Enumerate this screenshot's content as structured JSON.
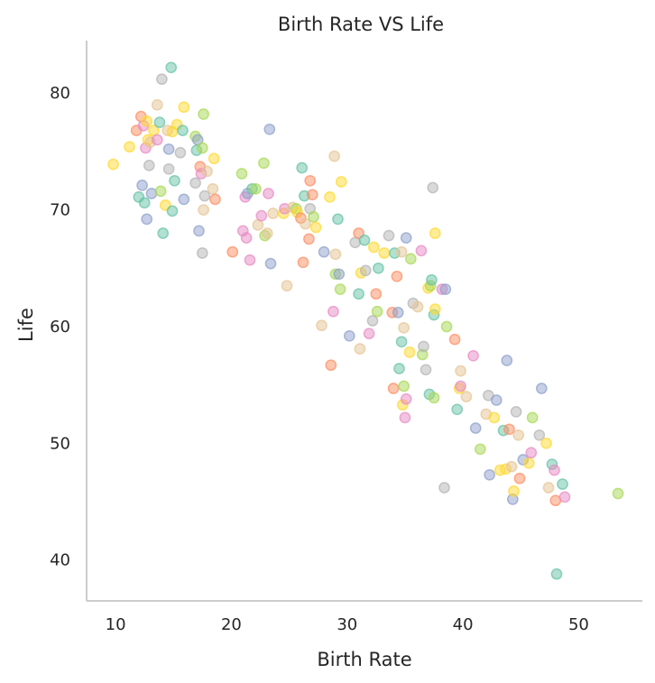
{
  "chart_data": {
    "type": "scatter",
    "title": "Birth Rate VS Life",
    "xlabel": "Birth Rate",
    "ylabel": "Life",
    "xlim": [
      7.5,
      55.5
    ],
    "ylim": [
      36.5,
      84.5
    ],
    "xticks": [
      10,
      20,
      30,
      40,
      50
    ],
    "yticks": [
      40,
      50,
      60,
      70,
      80
    ],
    "grid": false,
    "palette": [
      "#66c2a5",
      "#fc8d62",
      "#8da0cb",
      "#e78ac3",
      "#a6d854",
      "#ffd92f",
      "#e5c494",
      "#b3b3b3"
    ],
    "points": [
      [
        9.8,
        73.9,
        5
      ],
      [
        11.2,
        75.4,
        5
      ],
      [
        11.8,
        76.8,
        1
      ],
      [
        12.0,
        71.1,
        0
      ],
      [
        12.2,
        78.0,
        1
      ],
      [
        12.3,
        72.1,
        2
      ],
      [
        12.4,
        77.2,
        3
      ],
      [
        12.5,
        70.6,
        0
      ],
      [
        12.6,
        75.3,
        3
      ],
      [
        12.7,
        77.6,
        5
      ],
      [
        12.7,
        69.2,
        2
      ],
      [
        12.8,
        76.0,
        5
      ],
      [
        12.9,
        73.8,
        7
      ],
      [
        13.0,
        75.8,
        6
      ],
      [
        13.1,
        71.4,
        2
      ],
      [
        13.3,
        76.8,
        5
      ],
      [
        13.6,
        79.0,
        6
      ],
      [
        13.6,
        76.0,
        3
      ],
      [
        13.8,
        77.5,
        0
      ],
      [
        13.9,
        71.6,
        4
      ],
      [
        14.0,
        81.2,
        7
      ],
      [
        14.1,
        68.0,
        0
      ],
      [
        14.3,
        70.4,
        5
      ],
      [
        14.5,
        76.8,
        6
      ],
      [
        14.6,
        73.5,
        7
      ],
      [
        14.6,
        75.2,
        2
      ],
      [
        14.8,
        82.2,
        0
      ],
      [
        14.9,
        69.9,
        0
      ],
      [
        14.9,
        76.7,
        5
      ],
      [
        15.1,
        72.5,
        0
      ],
      [
        15.3,
        77.3,
        5
      ],
      [
        15.6,
        74.9,
        7
      ],
      [
        15.8,
        76.8,
        0
      ],
      [
        15.9,
        78.8,
        5
      ],
      [
        15.9,
        70.9,
        2
      ],
      [
        16.9,
        76.3,
        4
      ],
      [
        16.9,
        72.3,
        7
      ],
      [
        17.0,
        75.1,
        0
      ],
      [
        17.1,
        76.0,
        2
      ],
      [
        17.2,
        68.2,
        2
      ],
      [
        17.3,
        73.7,
        1
      ],
      [
        17.4,
        73.1,
        3
      ],
      [
        17.5,
        75.3,
        4
      ],
      [
        17.5,
        66.3,
        7
      ],
      [
        17.6,
        70.0,
        6
      ],
      [
        17.6,
        78.2,
        4
      ],
      [
        17.7,
        71.2,
        7
      ],
      [
        17.9,
        73.3,
        6
      ],
      [
        18.4,
        71.8,
        6
      ],
      [
        18.5,
        74.4,
        5
      ],
      [
        18.6,
        70.9,
        1
      ],
      [
        20.1,
        66.4,
        1
      ],
      [
        20.9,
        73.1,
        4
      ],
      [
        21.0,
        68.2,
        3
      ],
      [
        21.2,
        71.1,
        3
      ],
      [
        21.3,
        67.6,
        3
      ],
      [
        21.4,
        71.4,
        2
      ],
      [
        21.6,
        65.7,
        3
      ],
      [
        21.8,
        71.8,
        0
      ],
      [
        22.1,
        71.8,
        4
      ],
      [
        22.3,
        68.7,
        6
      ],
      [
        22.6,
        69.5,
        3
      ],
      [
        22.8,
        74.0,
        4
      ],
      [
        22.9,
        67.8,
        4
      ],
      [
        23.1,
        68.0,
        6
      ],
      [
        23.2,
        71.4,
        3
      ],
      [
        23.3,
        76.9,
        2
      ],
      [
        23.4,
        65.4,
        2
      ],
      [
        23.6,
        69.7,
        6
      ],
      [
        24.5,
        69.7,
        5
      ],
      [
        24.6,
        70.1,
        3
      ],
      [
        24.8,
        63.5,
        6
      ],
      [
        25.3,
        70.2,
        6
      ],
      [
        25.6,
        70.1,
        4
      ],
      [
        25.7,
        69.8,
        5
      ],
      [
        26.0,
        69.3,
        1
      ],
      [
        26.1,
        73.6,
        0
      ],
      [
        26.2,
        65.5,
        1
      ],
      [
        26.3,
        71.2,
        0
      ],
      [
        26.4,
        68.8,
        6
      ],
      [
        26.7,
        67.5,
        1
      ],
      [
        26.8,
        72.5,
        1
      ],
      [
        26.8,
        70.1,
        7
      ],
      [
        27.0,
        71.3,
        1
      ],
      [
        27.1,
        69.4,
        4
      ],
      [
        27.3,
        68.5,
        5
      ],
      [
        27.8,
        60.1,
        6
      ],
      [
        28.0,
        66.4,
        2
      ],
      [
        28.5,
        71.1,
        5
      ],
      [
        28.6,
        56.7,
        1
      ],
      [
        28.8,
        61.3,
        3
      ],
      [
        28.9,
        74.6,
        6
      ],
      [
        29.0,
        66.2,
        6
      ],
      [
        29.0,
        64.5,
        4
      ],
      [
        29.2,
        69.2,
        0
      ],
      [
        29.3,
        64.5,
        2
      ],
      [
        29.4,
        63.2,
        4
      ],
      [
        29.5,
        72.4,
        5
      ],
      [
        30.2,
        59.2,
        2
      ],
      [
        30.7,
        67.2,
        7
      ],
      [
        31.0,
        68.0,
        1
      ],
      [
        31.0,
        62.8,
        0
      ],
      [
        31.1,
        58.1,
        6
      ],
      [
        31.2,
        64.6,
        5
      ],
      [
        31.5,
        67.4,
        0
      ],
      [
        31.6,
        64.8,
        7
      ],
      [
        31.9,
        59.4,
        3
      ],
      [
        32.2,
        60.5,
        7
      ],
      [
        32.3,
        66.8,
        5
      ],
      [
        32.5,
        62.8,
        1
      ],
      [
        32.6,
        61.3,
        4
      ],
      [
        32.7,
        65.0,
        0
      ],
      [
        33.2,
        66.3,
        5
      ],
      [
        33.6,
        67.8,
        7
      ],
      [
        33.9,
        61.2,
        1
      ],
      [
        34.0,
        54.7,
        1
      ],
      [
        34.1,
        66.3,
        0
      ],
      [
        34.3,
        64.3,
        1
      ],
      [
        34.4,
        61.2,
        2
      ],
      [
        34.5,
        56.4,
        0
      ],
      [
        34.7,
        66.4,
        6
      ],
      [
        34.7,
        58.7,
        0
      ],
      [
        34.8,
        53.3,
        5
      ],
      [
        34.9,
        59.9,
        6
      ],
      [
        34.9,
        54.9,
        4
      ],
      [
        35.0,
        52.2,
        3
      ],
      [
        35.1,
        53.8,
        3
      ],
      [
        35.1,
        67.6,
        2
      ],
      [
        35.4,
        57.8,
        5
      ],
      [
        35.5,
        65.8,
        4
      ],
      [
        35.7,
        62.0,
        7
      ],
      [
        36.1,
        61.7,
        6
      ],
      [
        36.4,
        66.5,
        3
      ],
      [
        36.5,
        57.6,
        4
      ],
      [
        36.6,
        58.3,
        7
      ],
      [
        36.8,
        56.3,
        7
      ],
      [
        37.0,
        63.3,
        5
      ],
      [
        37.1,
        54.2,
        0
      ],
      [
        37.2,
        63.5,
        4
      ],
      [
        37.3,
        64.0,
        0
      ],
      [
        37.4,
        71.9,
        7
      ],
      [
        37.5,
        53.9,
        4
      ],
      [
        37.5,
        61.0,
        0
      ],
      [
        37.6,
        61.5,
        5
      ],
      [
        37.6,
        68.0,
        5
      ],
      [
        38.2,
        63.2,
        3
      ],
      [
        38.4,
        46.2,
        7
      ],
      [
        38.5,
        63.2,
        2
      ],
      [
        38.6,
        60.0,
        4
      ],
      [
        39.3,
        58.9,
        1
      ],
      [
        39.5,
        52.9,
        0
      ],
      [
        39.7,
        54.7,
        5
      ],
      [
        39.8,
        54.9,
        3
      ],
      [
        39.8,
        56.2,
        6
      ],
      [
        40.3,
        54.0,
        6
      ],
      [
        40.9,
        57.5,
        3
      ],
      [
        41.1,
        51.3,
        2
      ],
      [
        41.5,
        49.5,
        4
      ],
      [
        42.0,
        52.5,
        6
      ],
      [
        42.2,
        54.1,
        7
      ],
      [
        42.3,
        47.3,
        2
      ],
      [
        42.7,
        52.2,
        5
      ],
      [
        42.9,
        53.7,
        2
      ],
      [
        43.2,
        47.7,
        5
      ],
      [
        43.5,
        51.1,
        0
      ],
      [
        43.7,
        47.8,
        5
      ],
      [
        43.8,
        57.1,
        2
      ],
      [
        44.0,
        51.2,
        1
      ],
      [
        44.2,
        48.0,
        6
      ],
      [
        44.3,
        45.2,
        2
      ],
      [
        44.4,
        45.9,
        5
      ],
      [
        44.6,
        52.7,
        7
      ],
      [
        44.8,
        50.7,
        6
      ],
      [
        44.9,
        47.0,
        1
      ],
      [
        45.2,
        48.6,
        2
      ],
      [
        45.7,
        48.3,
        5
      ],
      [
        45.9,
        49.2,
        3
      ],
      [
        46.0,
        52.2,
        4
      ],
      [
        46.6,
        50.7,
        7
      ],
      [
        46.8,
        54.7,
        2
      ],
      [
        47.2,
        50.0,
        5
      ],
      [
        47.4,
        46.2,
        6
      ],
      [
        47.7,
        48.2,
        0
      ],
      [
        47.9,
        47.7,
        3
      ],
      [
        48.0,
        45.1,
        1
      ],
      [
        48.1,
        38.8,
        0
      ],
      [
        48.6,
        46.5,
        0
      ],
      [
        48.8,
        45.4,
        3
      ],
      [
        53.4,
        45.7,
        4
      ]
    ]
  }
}
